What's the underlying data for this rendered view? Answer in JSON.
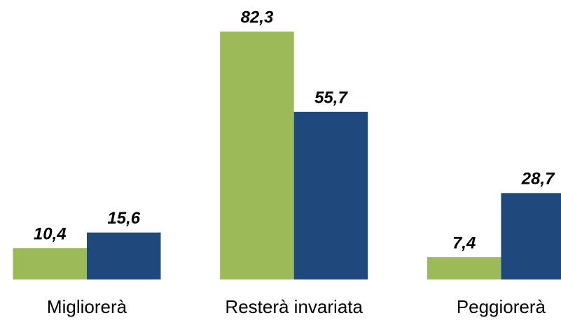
{
  "chart_data": {
    "type": "bar",
    "categories": [
      "Migliorerà",
      "Resterà invariata",
      "Peggiorerà"
    ],
    "series": [
      {
        "color": "#9bbb59",
        "values": [
          10.4,
          82.3,
          7.4
        ],
        "value_labels": [
          "10,4",
          "82,3",
          "7,4"
        ]
      },
      {
        "color": "#1f497d",
        "values": [
          15.6,
          55.7,
          28.7
        ],
        "value_labels": [
          "15,6",
          "55,7",
          "28,7"
        ]
      }
    ]
  }
}
